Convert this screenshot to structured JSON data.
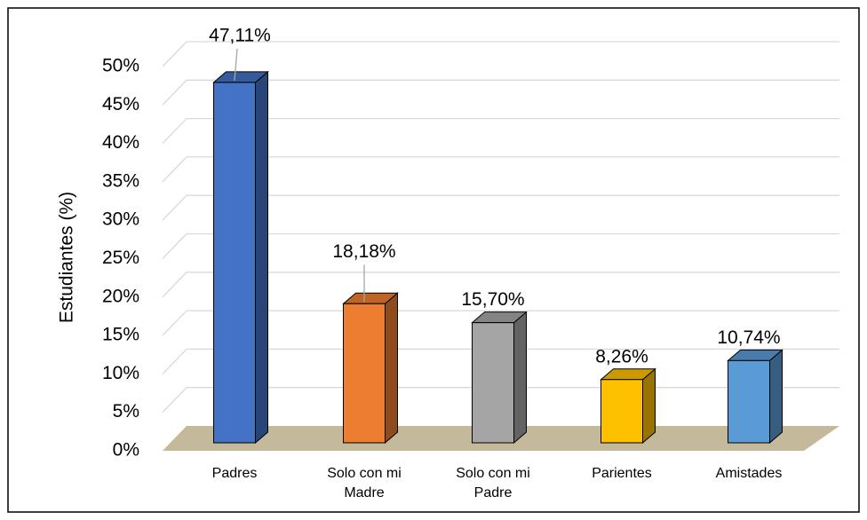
{
  "chart_data": {
    "type": "bar3d",
    "y_label": "Estudiantes (%)",
    "categories": [
      "Padres",
      "Solo con mi Madre",
      "Solo con mi Padre",
      "Parientes",
      "Amistades"
    ],
    "values": [
      47.11,
      18.18,
      15.7,
      8.26,
      10.74
    ],
    "value_labels": [
      "47,11%",
      "18,18%",
      "15,70%",
      "8,26%",
      "10,74%"
    ],
    "colors": [
      "#4472c4",
      "#ed7d31",
      "#a5a5a5",
      "#ffc000",
      "#5b9bd5"
    ],
    "ylim": [
      0,
      50
    ],
    "yticks": [
      {
        "value": 0,
        "label": "0%"
      },
      {
        "value": 5,
        "label": "5%"
      },
      {
        "value": 10,
        "label": "10%"
      },
      {
        "value": 15,
        "label": "15%"
      },
      {
        "value": 20,
        "label": "20%"
      },
      {
        "value": 25,
        "label": "25%"
      },
      {
        "value": 30,
        "label": "30%"
      },
      {
        "value": 35,
        "label": "35%"
      },
      {
        "value": 40,
        "label": "40%"
      },
      {
        "value": 45,
        "label": "45%"
      },
      {
        "value": 50,
        "label": "50%"
      }
    ],
    "grid": true
  }
}
